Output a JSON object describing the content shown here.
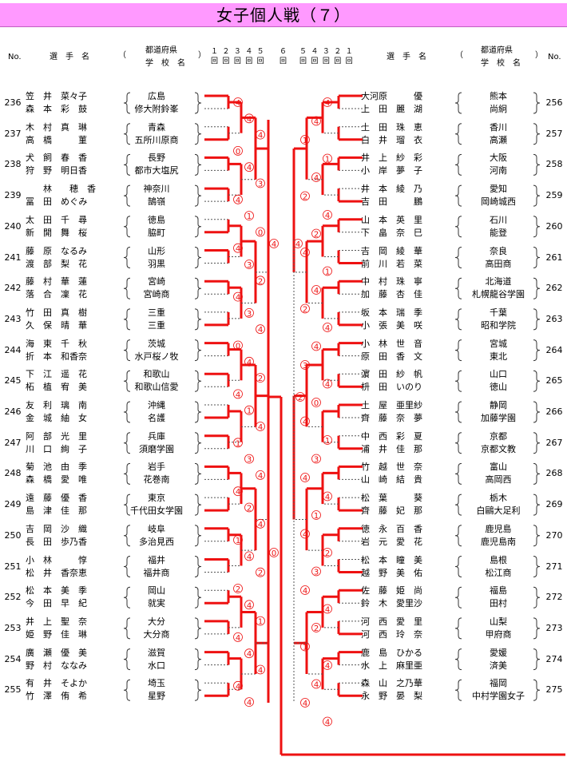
{
  "title": "女子個人戦（７）",
  "header": {
    "no": "No.",
    "player_name": "選　手　名",
    "paren_open": "（",
    "paren_close": "）",
    "pref_label": "都道府県",
    "school_label": "学　校　名",
    "rounds_left": "１ ２ ３ ４ ５",
    "rounds_center": "６",
    "rounds_right": "５ ４ ３ ２ １",
    "round_marks_left": "回 回 回 回 回",
    "round_marks_center": "回",
    "round_marks_right": "回 回 回 回 回"
  },
  "left_pairs": [
    {
      "no": "236",
      "p1": "笠　井　菜々子",
      "p2": "森　本　彩　鼓",
      "s1": "広島",
      "s2": "修大附鈴峯"
    },
    {
      "no": "237",
      "p1": "木　村　真　琳",
      "p2": "高　橋　　　菫",
      "s1": "青森",
      "s2": "五所川原商"
    },
    {
      "no": "238",
      "p1": "犬　飼　春　香",
      "p2": "狩　野　明日香",
      "s1": "長野",
      "s2": "都市大塩尻"
    },
    {
      "no": "239",
      "p1": "　　林　　穂　香",
      "p2": "冨　田　めぐみ",
      "s1": "神奈川",
      "s2": "鵠嶺"
    },
    {
      "no": "240",
      "p1": "太　田　千　尋",
      "p2": "新　開　舞　桜",
      "s1": "徳島",
      "s2": "脇町"
    },
    {
      "no": "241",
      "p1": "藤　原　なるみ",
      "p2": "渡　部　梨　花",
      "s1": "山形",
      "s2": "羽黒"
    },
    {
      "no": "242",
      "p1": "藤　村　華　蓮",
      "p2": "落　合　凜　花",
      "s1": "宮崎",
      "s2": "宮崎商"
    },
    {
      "no": "243",
      "p1": "竹　田　真　樹",
      "p2": "久　保　晴　華",
      "s1": "三重",
      "s2": "三重"
    },
    {
      "no": "244",
      "p1": "海　東　千　秋",
      "p2": "折　本　和香奈",
      "s1": "茨城",
      "s2": "水戸桜ノ牧"
    },
    {
      "no": "245",
      "p1": "下　江　遥　花",
      "p2": "柘　植　宥　美",
      "s1": "和歌山",
      "s2": "和歌山信愛"
    },
    {
      "no": "246",
      "p1": "友　利　璃　南",
      "p2": "金　城　紬　女",
      "s1": "沖縄",
      "s2": "名護"
    },
    {
      "no": "247",
      "p1": "阿　部　光　里",
      "p2": "川　口　絢　子",
      "s1": "兵庫",
      "s2": "須磨学園"
    },
    {
      "no": "248",
      "p1": "菊　池　由　季",
      "p2": "森　橋　愛　唯",
      "s1": "岩手",
      "s2": "花巻南"
    },
    {
      "no": "249",
      "p1": "遠　藤　優　香",
      "p2": "島　津　佳　那",
      "s1": "東京",
      "s2": "千代田女学園"
    },
    {
      "no": "250",
      "p1": "吉　岡　沙　織",
      "p2": "長　田　歩乃香",
      "s1": "岐阜",
      "s2": "多治見西"
    },
    {
      "no": "251",
      "p1": "小　林　　　惇",
      "p2": "松　井　香奈恵",
      "s1": "福井",
      "s2": "福井商"
    },
    {
      "no": "252",
      "p1": "松　本　美　季",
      "p2": "今　田　早　紀",
      "s1": "岡山",
      "s2": "就実"
    },
    {
      "no": "253",
      "p1": "井　上　聖　奈",
      "p2": "姫　野　佳　琳",
      "s1": "大分",
      "s2": "大分商"
    },
    {
      "no": "254",
      "p1": "廣　瀬　優　美",
      "p2": "野　村　ななみ",
      "s1": "滋賀",
      "s2": "水口"
    },
    {
      "no": "255",
      "p1": "有　井　そよか",
      "p2": "竹　澤　侑　希",
      "s1": "埼玉",
      "s2": "星野"
    }
  ],
  "right_pairs": [
    {
      "no": "256",
      "p1": "大河原　　　優",
      "p2": "上　田　麗　湖",
      "s1": "熊本",
      "s2": "尚絅"
    },
    {
      "no": "257",
      "p1": "土　田　珠　恵",
      "p2": "白　井　瑠　衣",
      "s1": "香川",
      "s2": "高瀬"
    },
    {
      "no": "258",
      "p1": "井　上　紗　彩",
      "p2": "小　岸　夢　子",
      "s1": "大阪",
      "s2": "河南"
    },
    {
      "no": "259",
      "p1": "井　本　綾　乃",
      "p2": "吉　田　　　鵬",
      "s1": "愛知",
      "s2": "岡崎城西"
    },
    {
      "no": "260",
      "p1": "山　本　英　里",
      "p2": "下　畠　奈　巳",
      "s1": "石川",
      "s2": "能登"
    },
    {
      "no": "261",
      "p1": "吉　岡　綾　華",
      "p2": "前　川　若　菜",
      "s1": "奈良",
      "s2": "高田商"
    },
    {
      "no": "262",
      "p1": "中　村　珠　寧",
      "p2": "加　藤　杏　佳",
      "s1": "北海道",
      "s2": "札幌龍谷学園"
    },
    {
      "no": "263",
      "p1": "坂　本　瑞　季",
      "p2": "小　張　美　咲",
      "s1": "千葉",
      "s2": "昭和学院"
    },
    {
      "no": "264",
      "p1": "小　林　世　音",
      "p2": "原　田　香　文",
      "s1": "宮城",
      "s2": "東北"
    },
    {
      "no": "265",
      "p1": "濵　田　紗　帆",
      "p2": "枡　田　いのり",
      "s1": "山口",
      "s2": "徳山"
    },
    {
      "no": "266",
      "p1": "土　屋　亜里紗",
      "p2": "齊　藤　奈　夢",
      "s1": "静岡",
      "s2": "加藤学園"
    },
    {
      "no": "267",
      "p1": "中　西　彩　夏",
      "p2": "浦　井　佳　那",
      "s1": "京都",
      "s2": "京都文教"
    },
    {
      "no": "268",
      "p1": "竹　越　世　奈",
      "p2": "山　崎　結　貴",
      "s1": "富山",
      "s2": "高岡西"
    },
    {
      "no": "269",
      "p1": "松　葉　　　葵",
      "p2": "齊　藤　妃　那",
      "s1": "栃木",
      "s2": "白鷗大足利"
    },
    {
      "no": "270",
      "p1": "徳　永　百　香",
      "p2": "岩　元　愛　花",
      "s1": "鹿児島",
      "s2": "鹿児島南"
    },
    {
      "no": "271",
      "p1": "松　本　瞳　美",
      "p2": "越　野　美　佑",
      "s1": "島根",
      "s2": "松江商"
    },
    {
      "no": "272",
      "p1": "佐　藤　姫　尚",
      "p2": "鈴　木　愛里沙",
      "s1": "福島",
      "s2": "田村"
    },
    {
      "no": "273",
      "p1": "河　西　愛　里",
      "p2": "河　西　玲　奈",
      "s1": "山梨",
      "s2": "甲府商"
    },
    {
      "no": "274",
      "p1": "鹿　島　ひかる",
      "p2": "水　上　麻里亜",
      "s1": "愛媛",
      "s2": "済美"
    },
    {
      "no": "275",
      "p1": "森　山　之乃華",
      "p2": "永　野　晏　梨",
      "s1": "福岡",
      "s2": "中村学園女子"
    }
  ],
  "left_scores": [
    "4",
    "4",
    "4",
    "0",
    "4",
    "3",
    "4",
    "1",
    "0",
    "4",
    "3",
    "2",
    "4",
    "3",
    "4",
    "0",
    "4",
    "2",
    "4",
    "1",
    "4",
    "1",
    "3",
    "4",
    "4",
    "2",
    "4",
    "1",
    "4",
    "2",
    "2",
    "4",
    "1",
    "4",
    "4",
    "4",
    "4",
    "4"
  ],
  "right_scores": [
    "4",
    "4",
    "1",
    "1",
    "4",
    "2",
    "4",
    "2",
    "4",
    "1",
    "4",
    "2",
    "4",
    "4",
    "3",
    "4",
    "0",
    "4",
    "1",
    "3",
    "4",
    "4",
    "1",
    "4",
    "2",
    "3",
    "4",
    "4",
    "2",
    "1",
    "4",
    "4",
    "4",
    "4"
  ],
  "center_scores": [
    "4",
    "4",
    "0",
    "2"
  ]
}
